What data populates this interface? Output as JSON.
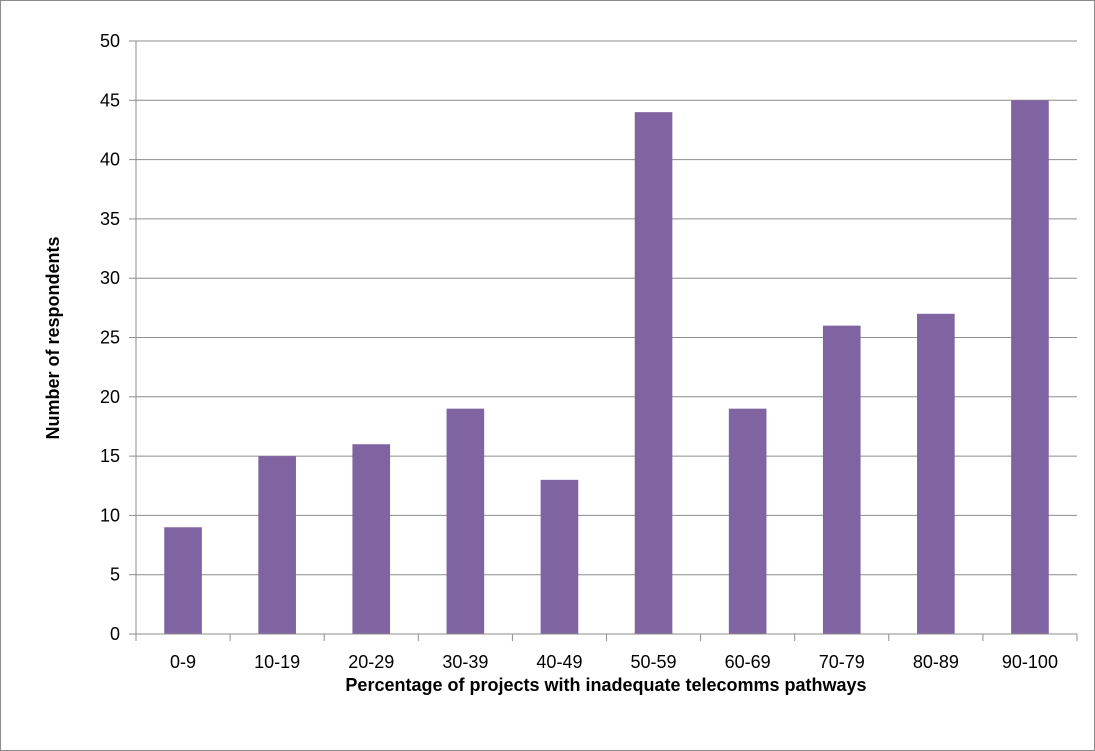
{
  "chart_data": {
    "type": "bar",
    "title": "",
    "xlabel": "Percentage of projects with inadequate telecomms pathways",
    "ylabel": "Number of respondents",
    "categories": [
      "0-9",
      "10-19",
      "20-29",
      "30-39",
      "40-49",
      "50-59",
      "60-69",
      "70-79",
      "80-89",
      "90-100"
    ],
    "values": [
      9,
      15,
      16,
      19,
      13,
      44,
      19,
      26,
      27,
      45
    ],
    "ylim": [
      0,
      50
    ],
    "yticks": [
      0,
      5,
      10,
      15,
      20,
      25,
      30,
      35,
      40,
      45,
      50
    ],
    "grid": "horizontal",
    "legend": "none",
    "bar_color": "#8064a2",
    "gridline_color": "#8c8c8c"
  }
}
